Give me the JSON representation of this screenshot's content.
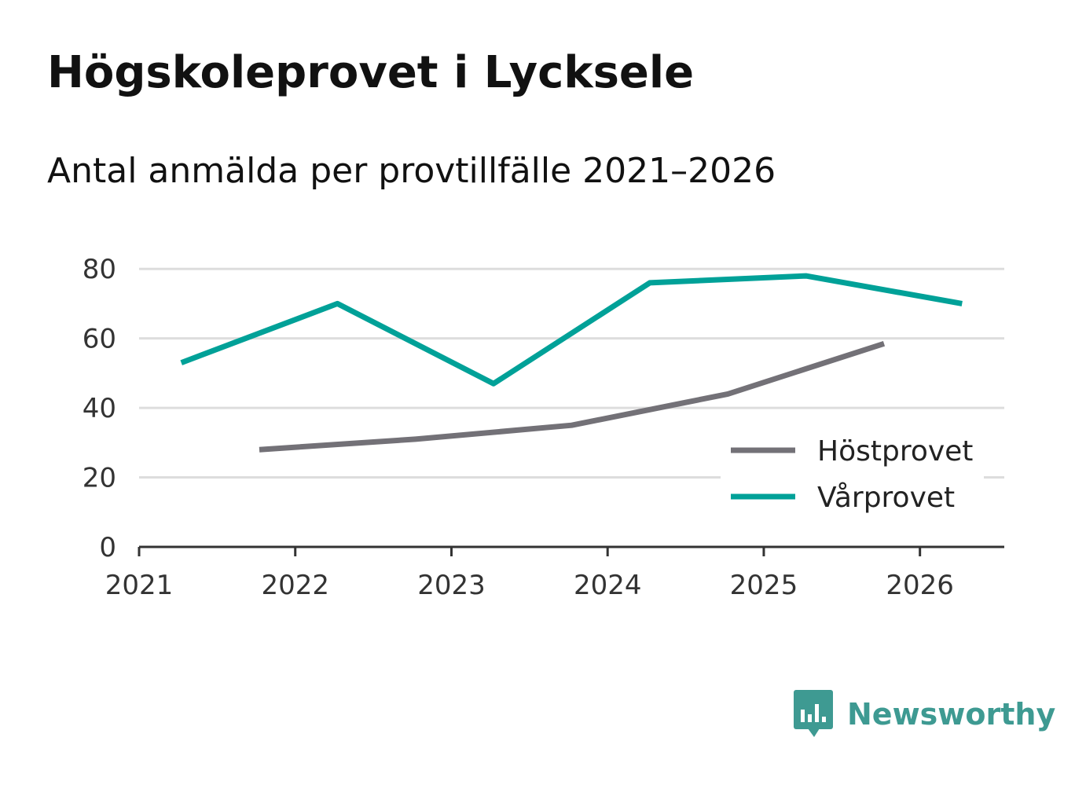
{
  "header": {
    "title": "Högskoleprovet i Lycksele",
    "subtitle": "Antal anmälda per provtillfälle 2021–2026"
  },
  "brand": {
    "name": "Newsworthy",
    "color": "#3e9a92"
  },
  "chart_data": {
    "type": "line",
    "title": "Högskoleprovet i Lycksele",
    "subtitle": "Antal anmälda per provtillfälle 2021–2026",
    "xlabel": "",
    "ylabel": "",
    "xlim": [
      2021,
      2026.54
    ],
    "ylim": [
      0,
      90
    ],
    "xticks": [
      2021,
      2022,
      2023,
      2024,
      2025,
      2026
    ],
    "yticks": [
      0,
      20,
      40,
      60,
      80
    ],
    "grid": true,
    "legend_position": "bottom-right",
    "series": [
      {
        "name": "Höstprovet",
        "color": "#737177",
        "x": [
          2021.77,
          2022.77,
          2023.77,
          2024.77,
          2025.77
        ],
        "values": [
          28,
          31,
          35,
          44,
          58.5
        ]
      },
      {
        "name": "Vårprovet",
        "color": "#00a198",
        "x": [
          2021.27,
          2022.27,
          2023.27,
          2024.27,
          2025.27,
          2026.27
        ],
        "values": [
          53,
          70,
          47,
          76,
          78,
          70
        ]
      }
    ]
  }
}
